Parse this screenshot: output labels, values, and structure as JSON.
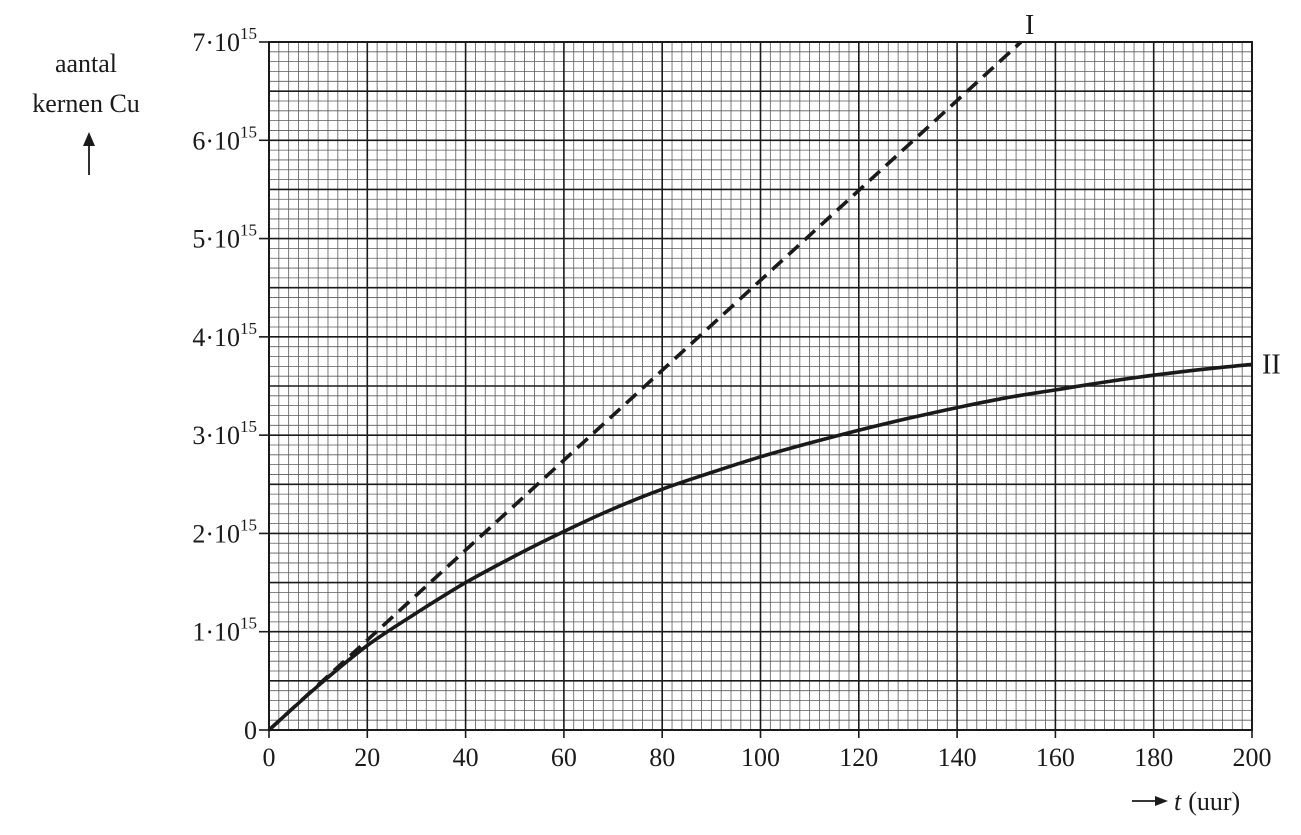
{
  "chart_data": {
    "type": "line",
    "xlabel_var": "t",
    "xlabel_unit": "(uur)",
    "ylabel_line1": "aantal",
    "ylabel_line2": "kernen Cu",
    "xlim": [
      0,
      200
    ],
    "ylim": [
      0,
      7000000000000000.0
    ],
    "grid": "fine millimetre grid",
    "x_ticks": [
      0,
      20,
      40,
      60,
      80,
      100,
      120,
      140,
      160,
      180,
      200
    ],
    "x_tick_labels": [
      "0",
      "20",
      "40",
      "60",
      "80",
      "100",
      "120",
      "140",
      "160",
      "180",
      "200"
    ],
    "y_ticks": [
      0,
      1000000000000000.0,
      2000000000000000.0,
      3000000000000000.0,
      4000000000000000.0,
      5000000000000000.0,
      6000000000000000.0,
      7000000000000000.0
    ],
    "y_tick_labels": [
      {
        "base": "0",
        "exp": ""
      },
      {
        "base": "1·10",
        "exp": "15"
      },
      {
        "base": "2·10",
        "exp": "15"
      },
      {
        "base": "3·10",
        "exp": "15"
      },
      {
        "base": "4·10",
        "exp": "15"
      },
      {
        "base": "5·10",
        "exp": "15"
      },
      {
        "base": "6·10",
        "exp": "15"
      },
      {
        "base": "7·10",
        "exp": "15"
      }
    ],
    "series": [
      {
        "name": "I",
        "style": "dashed",
        "color": "#1a1a1a",
        "x": [
          0,
          20,
          40,
          60,
          80,
          100,
          120,
          140,
          153
        ],
        "y": [
          0,
          915000000000000.0,
          1830000000000000.0,
          2745000000000000.0,
          3660000000000000.0,
          4575000000000000.0,
          5490000000000000.0,
          6405000000000000.0,
          7000000000000000.0
        ]
      },
      {
        "name": "II",
        "style": "solid",
        "color": "#1a1a1a",
        "x": [
          0,
          10,
          20,
          30,
          40,
          50,
          60,
          70,
          80,
          90,
          100,
          110,
          120,
          130,
          140,
          150,
          160,
          170,
          180,
          190,
          200
        ],
        "y": [
          0,
          450000000000000.0,
          860000000000000.0,
          1190000000000000.0,
          1500000000000000.0,
          1770000000000000.0,
          2020000000000000.0,
          2250000000000000.0,
          2450000000000000.0,
          2620000000000000.0,
          2780000000000000.0,
          2920000000000000.0,
          3050000000000000.0,
          3170000000000000.0,
          3280000000000000.0,
          3380000000000000.0,
          3460000000000000.0,
          3540000000000000.0,
          3610000000000000.0,
          3670000000000000.0,
          3720000000000000.0
        ]
      }
    ]
  }
}
